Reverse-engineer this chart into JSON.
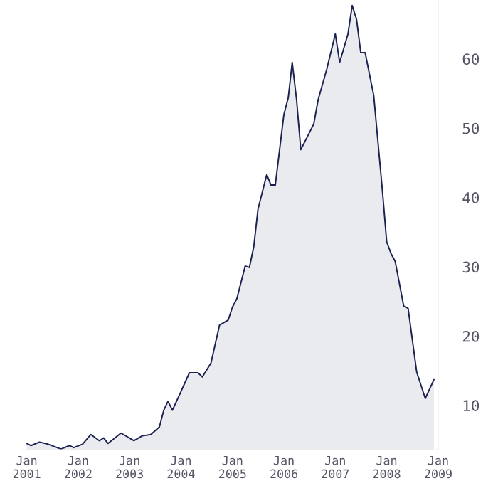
{
  "chart_data": {
    "type": "area",
    "x": [
      "2001-01",
      "2001-02",
      "2001-04",
      "2001-06",
      "2001-09",
      "2001-11",
      "2001-12",
      "2002-02",
      "2002-04",
      "2002-06",
      "2002-07",
      "2002-08",
      "2002-11",
      "2003-02",
      "2003-04",
      "2003-06",
      "2003-08",
      "2003-09",
      "2003-10",
      "2003-11",
      "2004-01",
      "2004-03",
      "2004-05",
      "2004-06",
      "2004-08",
      "2004-10",
      "2004-12",
      "2005-01",
      "2005-02",
      "2005-04",
      "2005-05",
      "2005-06",
      "2005-07",
      "2005-09",
      "2005-10",
      "2005-11",
      "2006-01",
      "2006-02",
      "2006-03",
      "2006-04",
      "2006-05",
      "2006-08",
      "2006-09",
      "2006-11",
      "2007-01",
      "2007-02",
      "2007-04",
      "2007-05",
      "2007-06",
      "2007-07",
      "2007-08",
      "2007-10",
      "2007-12",
      "2008-01",
      "2008-02",
      "2008-03",
      "2008-05",
      "2008-06",
      "2008-08",
      "2008-10",
      "2008-12"
    ],
    "series": [
      {
        "color": "#1b2150",
        "values": [
          4.5,
          4.2,
          4.7,
          4.4,
          3.7,
          4.2,
          3.9,
          4.4,
          5.8,
          4.9,
          5.3,
          4.5,
          6.0,
          4.9,
          5.6,
          5.8,
          6.9,
          9.3,
          10.6,
          9.3,
          12.0,
          14.7,
          14.7,
          14.1,
          16.1,
          21.6,
          22.3,
          24.2,
          25.4,
          30.1,
          29.9,
          32.9,
          38.3,
          43.3,
          41.8,
          41.8,
          52.0,
          54.4,
          59.5,
          54.1,
          46.9,
          50.6,
          54.1,
          58.5,
          63.6,
          59.5,
          63.6,
          67.7,
          65.7,
          60.9,
          60.9,
          54.7,
          41.1,
          33.6,
          31.9,
          30.8,
          24.3,
          24.0,
          14.8,
          11.0,
          13.7
        ]
      }
    ],
    "xlim": [
      "2000-12",
      "2009-01"
    ],
    "xticks": [
      {
        "value": "2001-01",
        "label": "Jan\n2001"
      },
      {
        "value": "2002-01",
        "label": "Jan\n2002"
      },
      {
        "value": "2003-01",
        "label": "Jan\n2003"
      },
      {
        "value": "2004-01",
        "label": "Jan\n2004"
      },
      {
        "value": "2005-01",
        "label": "Jan\n2005"
      },
      {
        "value": "2006-01",
        "label": "Jan\n2006"
      },
      {
        "value": "2007-01",
        "label": "Jan\n2007"
      },
      {
        "value": "2008-01",
        "label": "Jan\n2008"
      },
      {
        "value": "2009-01",
        "label": "Jan\n2009"
      }
    ],
    "ylim": [
      3.6,
      68.5
    ],
    "yticks": [
      10,
      20,
      30,
      40,
      50,
      60
    ],
    "grid": false,
    "legend": false
  }
}
